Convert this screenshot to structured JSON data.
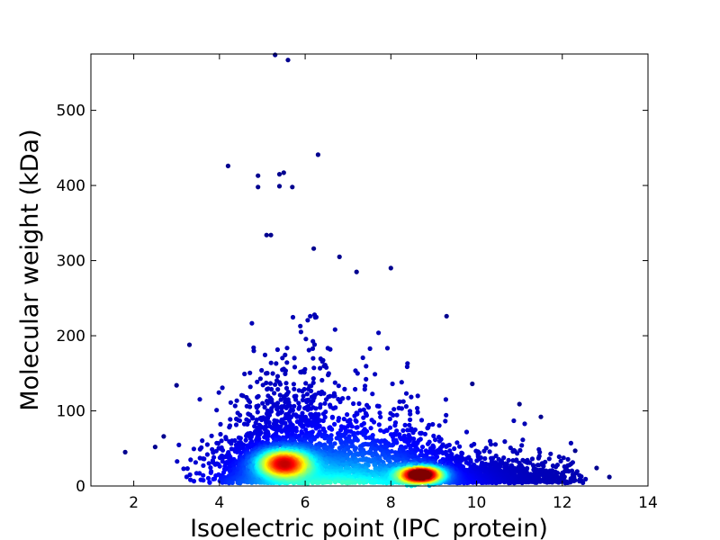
{
  "chart_data": {
    "type": "scatter",
    "title": "",
    "xlabel": "Isoelectric point (IPC_protein)",
    "ylabel": "Molecular weight (kDa)",
    "xlim": [
      1,
      14
    ],
    "ylim": [
      0,
      575
    ],
    "x_ticks": [
      2,
      4,
      6,
      8,
      10,
      12,
      14
    ],
    "y_ticks": [
      0,
      100,
      200,
      300,
      400,
      500
    ],
    "grid": false,
    "legend": "none",
    "colormap": "jet (point density)",
    "density_clusters": [
      {
        "x": 5.5,
        "y": 30,
        "peak_color": "#ff3000"
      },
      {
        "x": 8.7,
        "y": 15,
        "peak_color": "#a00000"
      }
    ],
    "outliers": [
      {
        "x": 5.3,
        "y": 575
      },
      {
        "x": 5.6,
        "y": 567
      },
      {
        "x": 4.2,
        "y": 426
      },
      {
        "x": 6.3,
        "y": 441
      },
      {
        "x": 4.9,
        "y": 413
      },
      {
        "x": 5.5,
        "y": 417
      },
      {
        "x": 5.4,
        "y": 415
      },
      {
        "x": 4.9,
        "y": 398
      },
      {
        "x": 5.4,
        "y": 399
      },
      {
        "x": 5.7,
        "y": 398
      },
      {
        "x": 5.1,
        "y": 334
      },
      {
        "x": 5.2,
        "y": 334
      },
      {
        "x": 6.2,
        "y": 316
      },
      {
        "x": 3.3,
        "y": 188
      },
      {
        "x": 3.0,
        "y": 134
      },
      {
        "x": 1.8,
        "y": 45
      },
      {
        "x": 2.5,
        "y": 52
      },
      {
        "x": 2.7,
        "y": 66
      },
      {
        "x": 13.1,
        "y": 12
      },
      {
        "x": 12.8,
        "y": 24
      },
      {
        "x": 12.3,
        "y": 47
      },
      {
        "x": 11.5,
        "y": 92
      },
      {
        "x": 11.0,
        "y": 109
      },
      {
        "x": 9.9,
        "y": 136
      },
      {
        "x": 9.3,
        "y": 226
      },
      {
        "x": 8.0,
        "y": 290
      },
      {
        "x": 7.2,
        "y": 285
      },
      {
        "x": 6.8,
        "y": 305
      }
    ]
  }
}
